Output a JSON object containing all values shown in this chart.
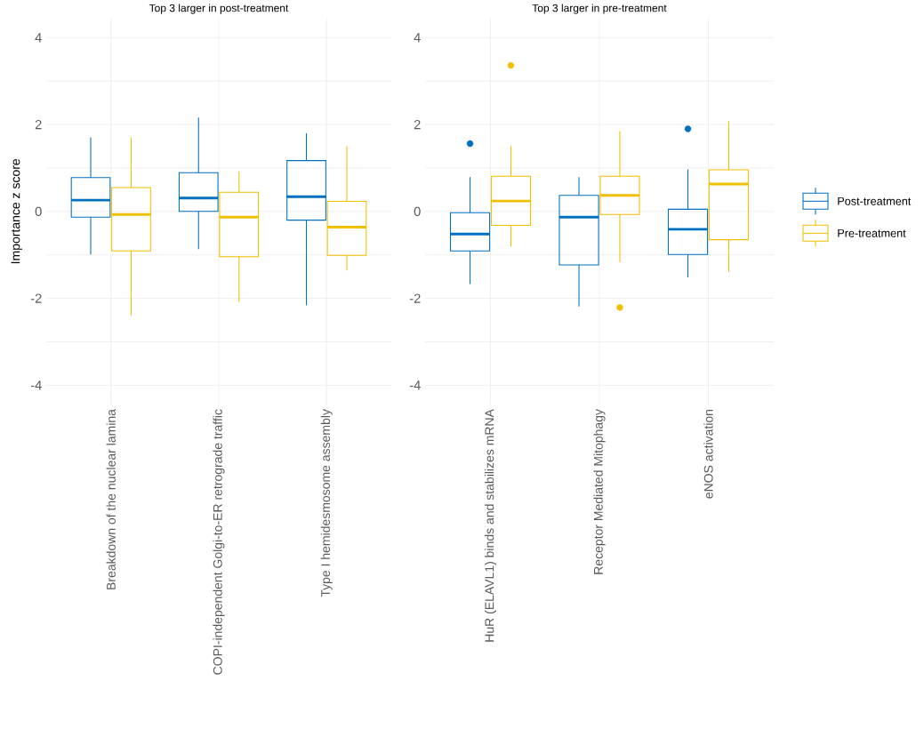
{
  "chart_data": [
    {
      "type": "box",
      "title": "Top 3 larger in post-treatment",
      "ylabel": "Importance z score",
      "categories": [
        "Breakdown of the nuclear lamina",
        "COPI-independent Golgi-to-ER retrograde traffic",
        "Type I hemidesmosome assembly"
      ],
      "ylim": [
        -4.45,
        4.45
      ],
      "yticks": [
        -4,
        {
          "value": -3,
          "label": null
        },
        -2,
        {
          "value": -1,
          "label": null
        },
        0,
        {
          "value": 1,
          "label": null
        },
        2,
        {
          "value": 3,
          "label": null
        },
        4
      ],
      "grid": true,
      "series": [
        {
          "color": "#0070c0",
          "boxes": [
            {
              "low": -0.99,
              "q1": -0.13,
              "median": 0.26,
              "q3": 0.78,
              "high": 1.7
            },
            {
              "low": -0.87,
              "q1": 0.0,
              "median": 0.31,
              "q3": 0.89,
              "high": 2.16
            },
            {
              "low": -2.16,
              "q1": -0.2,
              "median": 0.34,
              "q3": 1.17,
              "high": 1.8
            }
          ]
        },
        {
          "color": "#f0c000",
          "boxes": [
            {
              "low": -2.4,
              "q1": -0.91,
              "median": -0.07,
              "q3": 0.55,
              "high": 1.7
            },
            {
              "low": -2.08,
              "q1": -1.04,
              "median": -0.13,
              "q3": 0.44,
              "high": 0.92
            },
            {
              "low": -1.36,
              "q1": -1.01,
              "median": -0.36,
              "q3": 0.23,
              "high": 1.5
            }
          ]
        }
      ]
    },
    {
      "type": "box",
      "title": "Top 3 larger in pre-treatment",
      "categories": [
        "HuR (ELAVL1) binds and stabilizes mRNA",
        "Receptor Mediated Mitophagy",
        "eNOS activation"
      ],
      "ylim": [
        -4.45,
        4.45
      ],
      "yticks": [
        -4,
        {
          "value": -3,
          "label": null
        },
        -2,
        {
          "value": -1,
          "label": null
        },
        0,
        {
          "value": 1,
          "label": null
        },
        2,
        {
          "value": 3,
          "label": null
        },
        4
      ],
      "grid": true,
      "legend": "right",
      "series": [
        {
          "name": "Post-treatment",
          "color": "#0070c0",
          "boxes": [
            {
              "low": -1.67,
              "q1": -0.91,
              "median": -0.52,
              "q3": -0.03,
              "high": 0.79,
              "outliers": [
                1.56
              ]
            },
            {
              "low": -2.19,
              "q1": -1.23,
              "median": -0.13,
              "q3": 0.37,
              "high": 0.79
            },
            {
              "low": -1.52,
              "q1": -0.99,
              "median": -0.41,
              "q3": 0.05,
              "high": 0.97,
              "outliers": [
                1.9
              ]
            }
          ]
        },
        {
          "name": "Pre-treatment",
          "color": "#f0c000",
          "boxes": [
            {
              "low": -0.81,
              "q1": -0.32,
              "median": 0.24,
              "q3": 0.81,
              "high": 1.51,
              "outliers": [
                3.36
              ]
            },
            {
              "low": -1.17,
              "q1": -0.07,
              "median": 0.37,
              "q3": 0.81,
              "high": 1.85,
              "outliers": [
                -2.21
              ]
            },
            {
              "low": -1.39,
              "q1": -0.65,
              "median": 0.63,
              "q3": 0.96,
              "high": 2.08
            }
          ]
        }
      ]
    }
  ]
}
